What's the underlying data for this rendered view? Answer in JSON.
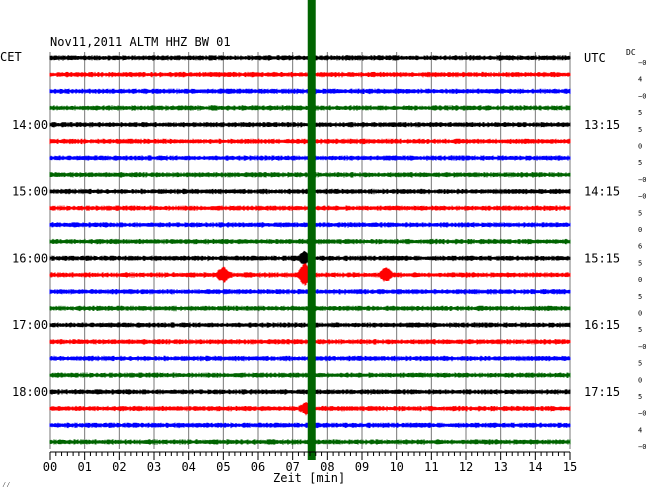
{
  "chart_data": {
    "type": "line",
    "title": "Nov11,2011   ALTM HHZ BW 01",
    "left_label": "CET",
    "right_label": "UTC",
    "dc_label": "DC",
    "xlabel": "Zeit [min]",
    "x_ticks": [
      "00",
      "01",
      "02",
      "03",
      "04",
      "05",
      "06",
      "07",
      "08",
      "09",
      "10",
      "11",
      "12",
      "13",
      "14",
      "15"
    ],
    "xlim": [
      0,
      15
    ],
    "left_hour_labels": [
      {
        "row": 4,
        "label": "14:00"
      },
      {
        "row": 8,
        "label": "15:00"
      },
      {
        "row": 12,
        "label": "16:00"
      },
      {
        "row": 16,
        "label": "17:00"
      },
      {
        "row": 20,
        "label": "18:00"
      }
    ],
    "right_time_labels": [
      {
        "row": 0,
        "label": "UTC"
      },
      {
        "row": 4,
        "label": "13:15"
      },
      {
        "row": 8,
        "label": "14:15"
      },
      {
        "row": 12,
        "label": "15:15"
      },
      {
        "row": 16,
        "label": "16:15"
      },
      {
        "row": 20,
        "label": "17:15"
      }
    ],
    "dc_offsets": [
      "−0",
      "4",
      "−0",
      "5",
      "5",
      "0",
      "5",
      "−0",
      "−0",
      "5",
      "0",
      "6",
      "5",
      "0",
      "5",
      "0",
      "5",
      "−0",
      "5",
      "0",
      "5",
      "−0",
      "4",
      "−0"
    ],
    "row_colors": [
      "#000000",
      "#ff0000",
      "#0000ff",
      "#006400"
    ],
    "traces": 24,
    "highlight_marker": {
      "minute": 7.55,
      "color": "#006400"
    },
    "events": [
      {
        "row": 13,
        "minute": 5.0,
        "amplitude": 1.6
      },
      {
        "row": 13,
        "minute": 7.35,
        "amplitude": 2.6
      },
      {
        "row": 13,
        "minute": 9.7,
        "amplitude": 1.5
      },
      {
        "row": 12,
        "minute": 7.35,
        "amplitude": 1.3
      },
      {
        "row": 21,
        "minute": 7.4,
        "amplitude": 1.2
      }
    ],
    "corner_mark": "⁄⁄"
  }
}
